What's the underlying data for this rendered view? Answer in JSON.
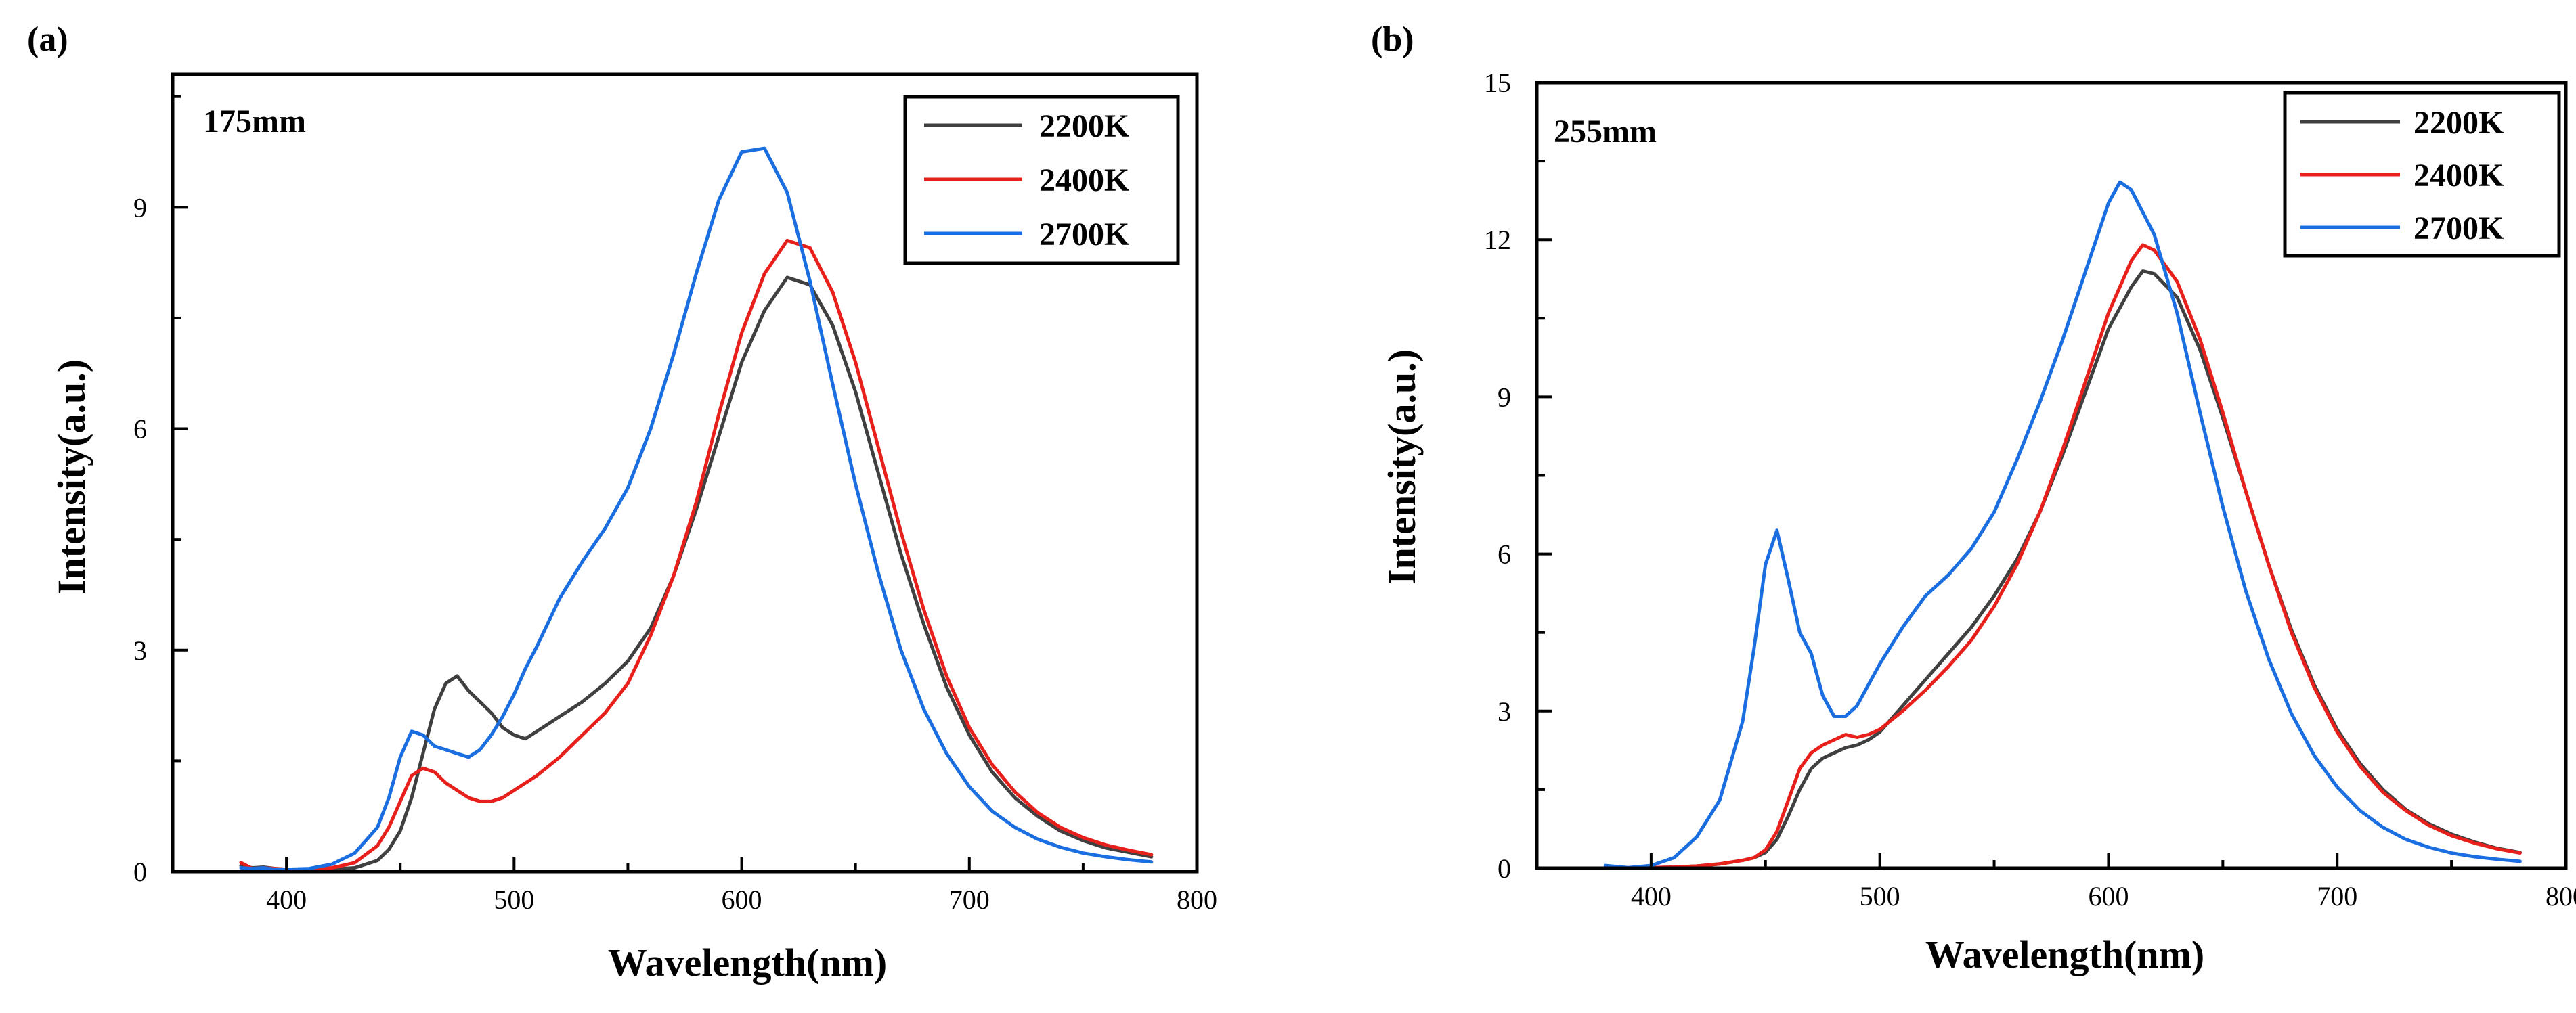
{
  "colors": {
    "2200K": "#404040",
    "2400K": "#e8201c",
    "2700K": "#1a6ee0"
  },
  "chart_data": [
    {
      "type": "line",
      "panel_label": "(a)",
      "annotation": "175mm",
      "xlabel": "Wavelength(nm)",
      "ylabel": "Intensity(a.u.)",
      "xlim": [
        350,
        800
      ],
      "ylim": [
        0,
        10.8
      ],
      "xticks": [
        400,
        500,
        600,
        700,
        800
      ],
      "yticks": [
        0,
        3,
        6,
        9
      ],
      "xtick_labels": [
        "400",
        "500",
        "600",
        "700",
        "800"
      ],
      "ytick_labels": [
        "0",
        "3",
        "6",
        "9"
      ],
      "legend_position": "top-right",
      "series": [
        {
          "name": "2200K",
          "x": [
            380,
            385,
            390,
            395,
            400,
            410,
            420,
            430,
            440,
            445,
            450,
            455,
            460,
            465,
            470,
            475,
            480,
            485,
            490,
            495,
            500,
            505,
            510,
            520,
            530,
            540,
            550,
            560,
            570,
            580,
            590,
            600,
            610,
            620,
            630,
            640,
            650,
            660,
            670,
            680,
            690,
            700,
            710,
            720,
            730,
            740,
            750,
            760,
            770,
            780
          ],
          "y": [
            0.08,
            0.05,
            0.06,
            0.04,
            0.03,
            0.02,
            0.03,
            0.05,
            0.15,
            0.3,
            0.55,
            1.0,
            1.6,
            2.2,
            2.55,
            2.65,
            2.45,
            2.3,
            2.15,
            1.95,
            1.85,
            1.8,
            1.9,
            2.1,
            2.3,
            2.55,
            2.85,
            3.3,
            4.0,
            4.9,
            5.9,
            6.9,
            7.6,
            8.05,
            7.95,
            7.4,
            6.5,
            5.4,
            4.3,
            3.35,
            2.5,
            1.85,
            1.35,
            1.0,
            0.75,
            0.55,
            0.42,
            0.32,
            0.26,
            0.2
          ]
        },
        {
          "name": "2400K",
          "x": [
            380,
            385,
            390,
            395,
            400,
            410,
            420,
            430,
            440,
            445,
            450,
            455,
            460,
            465,
            470,
            475,
            480,
            485,
            490,
            495,
            500,
            505,
            510,
            520,
            530,
            540,
            550,
            560,
            570,
            580,
            590,
            600,
            610,
            620,
            630,
            640,
            650,
            660,
            670,
            680,
            690,
            700,
            710,
            720,
            730,
            740,
            750,
            760,
            770,
            780
          ],
          "y": [
            0.12,
            0.04,
            0.05,
            0.04,
            0.03,
            0.03,
            0.05,
            0.12,
            0.35,
            0.6,
            0.95,
            1.3,
            1.4,
            1.35,
            1.2,
            1.1,
            1.0,
            0.95,
            0.95,
            1.0,
            1.1,
            1.2,
            1.3,
            1.55,
            1.85,
            2.15,
            2.55,
            3.2,
            4.0,
            5.0,
            6.2,
            7.3,
            8.1,
            8.55,
            8.45,
            7.85,
            6.9,
            5.75,
            4.6,
            3.55,
            2.65,
            1.95,
            1.45,
            1.08,
            0.8,
            0.6,
            0.46,
            0.36,
            0.29,
            0.23
          ]
        },
        {
          "name": "2700K",
          "x": [
            380,
            385,
            390,
            395,
            400,
            410,
            420,
            430,
            440,
            445,
            450,
            455,
            460,
            465,
            470,
            475,
            480,
            485,
            490,
            495,
            500,
            505,
            510,
            520,
            530,
            540,
            550,
            560,
            570,
            580,
            590,
            600,
            610,
            620,
            630,
            640,
            650,
            660,
            670,
            680,
            690,
            700,
            710,
            720,
            730,
            740,
            750,
            760,
            770,
            780
          ],
          "y": [
            0.05,
            0.04,
            0.05,
            0.03,
            0.03,
            0.04,
            0.1,
            0.25,
            0.6,
            1.0,
            1.55,
            1.9,
            1.85,
            1.7,
            1.65,
            1.6,
            1.55,
            1.65,
            1.85,
            2.1,
            2.4,
            2.75,
            3.05,
            3.7,
            4.2,
            4.65,
            5.2,
            6.0,
            7.0,
            8.1,
            9.1,
            9.75,
            9.8,
            9.2,
            8.0,
            6.6,
            5.25,
            4.05,
            3.0,
            2.2,
            1.6,
            1.15,
            0.82,
            0.6,
            0.44,
            0.33,
            0.25,
            0.2,
            0.16,
            0.13
          ]
        }
      ]
    },
    {
      "type": "line",
      "panel_label": "(b)",
      "annotation": "255mm",
      "xlabel": "Wavelength(nm)",
      "ylabel": "Intensity(a.u.)",
      "xlim": [
        350,
        800
      ],
      "ylim": [
        0,
        15
      ],
      "xticks": [
        400,
        500,
        600,
        700,
        800
      ],
      "yticks": [
        0,
        3,
        6,
        9,
        12,
        15
      ],
      "xtick_labels": [
        "400",
        "500",
        "600",
        "700",
        "800"
      ],
      "ytick_labels": [
        "0",
        "3",
        "6",
        "9",
        "12",
        "15"
      ],
      "legend_position": "top-right",
      "series": [
        {
          "name": "2200K",
          "x": [
            380,
            390,
            400,
            410,
            420,
            430,
            440,
            445,
            450,
            455,
            460,
            465,
            470,
            475,
            480,
            485,
            490,
            495,
            500,
            510,
            520,
            530,
            540,
            550,
            560,
            570,
            580,
            590,
            600,
            610,
            615,
            620,
            630,
            640,
            650,
            660,
            670,
            680,
            690,
            700,
            710,
            720,
            730,
            740,
            750,
            760,
            770,
            780
          ],
          "y": [
            0.0,
            0.0,
            0.01,
            0.02,
            0.04,
            0.08,
            0.15,
            0.2,
            0.3,
            0.55,
            1.0,
            1.5,
            1.9,
            2.1,
            2.2,
            2.3,
            2.35,
            2.45,
            2.6,
            3.1,
            3.6,
            4.1,
            4.6,
            5.2,
            5.9,
            6.8,
            7.9,
            9.1,
            10.3,
            11.1,
            11.4,
            11.35,
            10.9,
            9.9,
            8.6,
            7.2,
            5.8,
            4.55,
            3.5,
            2.65,
            2.0,
            1.5,
            1.12,
            0.85,
            0.65,
            0.5,
            0.38,
            0.3
          ]
        },
        {
          "name": "2400K",
          "x": [
            380,
            390,
            400,
            410,
            420,
            430,
            440,
            445,
            450,
            455,
            460,
            465,
            470,
            475,
            480,
            485,
            490,
            495,
            500,
            510,
            520,
            530,
            540,
            550,
            560,
            570,
            580,
            590,
            600,
            610,
            615,
            620,
            630,
            640,
            650,
            660,
            670,
            680,
            690,
            700,
            710,
            720,
            730,
            740,
            750,
            760,
            770,
            780
          ],
          "y": [
            0.0,
            0.0,
            0.01,
            0.02,
            0.04,
            0.08,
            0.15,
            0.2,
            0.35,
            0.7,
            1.3,
            1.9,
            2.2,
            2.35,
            2.45,
            2.55,
            2.5,
            2.55,
            2.65,
            3.0,
            3.4,
            3.85,
            4.35,
            5.0,
            5.8,
            6.8,
            8.0,
            9.3,
            10.6,
            11.6,
            11.9,
            11.8,
            11.2,
            10.1,
            8.7,
            7.2,
            5.8,
            4.5,
            3.45,
            2.6,
            1.95,
            1.45,
            1.1,
            0.82,
            0.62,
            0.48,
            0.37,
            0.29
          ]
        },
        {
          "name": "2700K",
          "x": [
            380,
            390,
            400,
            410,
            420,
            430,
            440,
            445,
            450,
            455,
            460,
            465,
            470,
            475,
            480,
            485,
            490,
            495,
            500,
            510,
            520,
            530,
            540,
            550,
            560,
            570,
            580,
            590,
            600,
            605,
            610,
            620,
            630,
            640,
            650,
            660,
            670,
            680,
            690,
            700,
            710,
            720,
            730,
            740,
            750,
            760,
            770,
            780
          ],
          "y": [
            0.05,
            0.01,
            0.05,
            0.2,
            0.6,
            1.3,
            2.8,
            4.2,
            5.8,
            6.45,
            5.5,
            4.5,
            4.1,
            3.3,
            2.9,
            2.9,
            3.1,
            3.5,
            3.9,
            4.6,
            5.2,
            5.6,
            6.1,
            6.8,
            7.8,
            8.9,
            10.1,
            11.4,
            12.7,
            13.1,
            12.95,
            12.1,
            10.6,
            8.7,
            6.9,
            5.3,
            4.0,
            2.95,
            2.15,
            1.55,
            1.1,
            0.78,
            0.55,
            0.4,
            0.29,
            0.22,
            0.17,
            0.13
          ]
        }
      ]
    }
  ]
}
